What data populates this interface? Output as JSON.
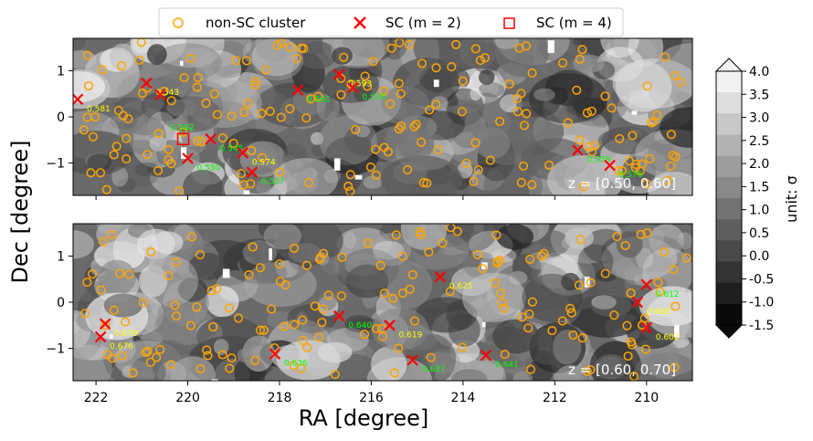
{
  "chart_data": {
    "type": "scatter",
    "xlabel": "RA [degree]",
    "ylabel": "Dec [degree]",
    "xlim": [
      222.5,
      209.0
    ],
    "ylim": [
      -1.7,
      1.7
    ],
    "xticks": [
      "222",
      "220",
      "218",
      "216",
      "214",
      "212",
      "210"
    ],
    "yticks": [
      "1",
      "0",
      "−1"
    ],
    "legend": {
      "position": "top-center",
      "entries": [
        "non-SC cluster",
        "SC ($m = 2$)",
        "SC ($m = 4$)"
      ],
      "entries_display": [
        "non-SC cluster",
        "SC (m = 2)",
        "SC (m = 4)"
      ]
    },
    "colorbar": {
      "label": "unit: σ",
      "ticks": [
        "4.0",
        "3.5",
        "3.0",
        "2.5",
        "2.0",
        "1.5",
        "1.0",
        "0.5",
        "0.0",
        "-0.5",
        "-1.0",
        "-1.5"
      ],
      "min": -1.5,
      "max": 4.0,
      "levels": 12
    },
    "panels": [
      {
        "name": "top",
        "annotation": "z = [0.50, 0.60]",
        "sc_m2": [
          {
            "ra": 222.4,
            "dec": 0.38,
            "label": "0.581",
            "color": "#ffff00"
          },
          {
            "ra": 220.9,
            "dec": 0.73,
            "label": "0.543",
            "color": "#ffff00"
          },
          {
            "ra": 220.6,
            "dec": 0.48,
            "label": null,
            "color": null
          },
          {
            "ra": 220.0,
            "dec": -0.9,
            "label": "0.550",
            "color": "#00ff00"
          },
          {
            "ra": 219.5,
            "dec": -0.48,
            "label": "0.545",
            "color": "#00ff00"
          },
          {
            "ra": 218.8,
            "dec": -0.78,
            "label": "0.574",
            "color": "#ffff00"
          },
          {
            "ra": 218.6,
            "dec": -1.2,
            "label": "0.527",
            "color": "#00ff00"
          },
          {
            "ra": 217.6,
            "dec": 0.58,
            "label": "0.561",
            "color": "#00ff00"
          },
          {
            "ra": 216.7,
            "dec": 0.92,
            "label": "0.593",
            "color": "#ffff00"
          },
          {
            "ra": 216.4,
            "dec": 0.63,
            "label": "0.576",
            "color": "#00ff00"
          },
          {
            "ra": 211.5,
            "dec": -0.72,
            "label": "0.559",
            "color": "#00ff00"
          },
          {
            "ra": 210.8,
            "dec": -1.05,
            "label": "0.576",
            "color": "#00ff00"
          }
        ],
        "sc_m4": [
          {
            "ra": 220.1,
            "dec": -0.48,
            "label": "0.542",
            "color": "#00ff00"
          }
        ]
      },
      {
        "name": "bottom",
        "annotation": "z = [0.60, 0.70]",
        "sc_m2": [
          {
            "ra": 221.8,
            "dec": -0.47,
            "label": "0.679",
            "color": "#ffff00"
          },
          {
            "ra": 221.9,
            "dec": -0.75,
            "label": "0.676",
            "color": "#ffff00"
          },
          {
            "ra": 218.1,
            "dec": -1.12,
            "label": "0.636",
            "color": "#00ff00"
          },
          {
            "ra": 216.7,
            "dec": -0.3,
            "label": "0.640",
            "color": "#00ff00"
          },
          {
            "ra": 215.6,
            "dec": -0.5,
            "label": "0.619",
            "color": "#ffff00"
          },
          {
            "ra": 215.1,
            "dec": -1.25,
            "label": "0.637",
            "color": "#00ff00"
          },
          {
            "ra": 214.5,
            "dec": 0.55,
            "label": "0.625",
            "color": "#ffff00"
          },
          {
            "ra": 213.5,
            "dec": -1.15,
            "label": "0.641",
            "color": "#00ff00"
          },
          {
            "ra": 210.2,
            "dec": 0.0,
            "label": "0.606",
            "color": "#ffff00"
          },
          {
            "ra": 210.0,
            "dec": 0.38,
            "label": "0.612",
            "color": "#00ff00"
          },
          {
            "ra": 210.0,
            "dec": -0.55,
            "label": "0.602",
            "color": "#ffff00"
          }
        ],
        "sc_m4": []
      }
    ]
  },
  "colors": {
    "non_sc": "#ffa500",
    "sc": "#ff0000",
    "label_yellow": "#ffff00",
    "label_green": "#00ff00"
  }
}
